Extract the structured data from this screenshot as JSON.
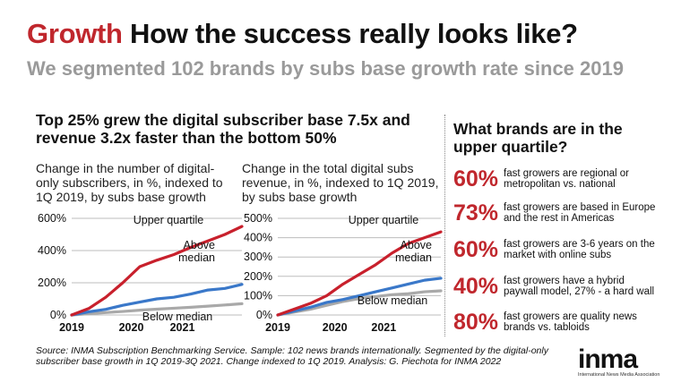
{
  "header": {
    "title_accent": "Growth",
    "title_rest": " How the success really looks like?",
    "subtitle": "We segmented 102 brands by subs base growth rate since 2019"
  },
  "headline": "Top 25% grew the digital subscriber base 7.5x and revenue 3.2x faster than the bottom 50%",
  "charts": [
    {
      "description": "Change in the number of digital-only subscribers, in %, indexed to 1Q 2019, by subs base growth"
    },
    {
      "description": "Change in the total digital subs revenue, in %, indexed to 1Q 2019, by subs base growth"
    }
  ],
  "chart_data": [
    {
      "type": "line",
      "ylim": [
        0,
        600
      ],
      "yticks": [
        "0%",
        "200%",
        "400%",
        "600%"
      ],
      "xticks": [
        "2019",
        "2020",
        "2021"
      ],
      "x": [
        0,
        1,
        2,
        3,
        4,
        5,
        6,
        7,
        8,
        9,
        10
      ],
      "series": [
        {
          "name": "Upper quartile",
          "color": "#c8202c",
          "values": [
            0,
            40,
            110,
            200,
            300,
            340,
            375,
            420,
            460,
            500,
            550
          ]
        },
        {
          "name": "Above median",
          "color": "#3a78c9",
          "values": [
            0,
            20,
            35,
            60,
            80,
            100,
            110,
            130,
            155,
            165,
            190
          ]
        },
        {
          "name": "Below median",
          "color": "#a9a9a9",
          "values": [
            0,
            8,
            15,
            22,
            30,
            36,
            42,
            48,
            55,
            62,
            70
          ]
        }
      ]
    },
    {
      "type": "line",
      "ylim": [
        0,
        500
      ],
      "yticks": [
        "0%",
        "100%",
        "200%",
        "300%",
        "400%",
        "500%"
      ],
      "xticks": [
        "2019",
        "2020",
        "2021"
      ],
      "x": [
        0,
        1,
        2,
        3,
        4,
        5,
        6,
        7,
        8,
        9,
        10
      ],
      "series": [
        {
          "name": "Upper quartile",
          "color": "#c8202c",
          "values": [
            0,
            30,
            60,
            100,
            160,
            210,
            260,
            320,
            370,
            400,
            430
          ]
        },
        {
          "name": "Above median",
          "color": "#3a78c9",
          "values": [
            0,
            20,
            40,
            65,
            80,
            100,
            120,
            140,
            160,
            180,
            190
          ]
        },
        {
          "name": "Below median",
          "color": "#a9a9a9",
          "values": [
            0,
            15,
            30,
            50,
            70,
            85,
            95,
            105,
            110,
            120,
            125
          ]
        }
      ]
    }
  ],
  "sidebar": {
    "title": "What brands are in the upper quartile?",
    "stats": [
      {
        "pct": "60%",
        "text": "fast growers are regional or metropolitan vs. national"
      },
      {
        "pct": "73%",
        "text": "fast growers are based in Europe and the rest in Americas"
      },
      {
        "pct": "60%",
        "text": "fast growers are 3-6 years on the market with online subs"
      },
      {
        "pct": "40%",
        "text": "fast growers have a hybrid paywall model, 27% - a hard wall"
      },
      {
        "pct": "80%",
        "text": "fast growers are quality news brands vs. tabloids"
      }
    ]
  },
  "footer": {
    "source": "Source: INMA Subscription Benchmarking Service. Sample: 102 news brands internationally. Segmented by the digital-only subscriber base growth in 1Q 2019-3Q 2021. Change indexed to 1Q 2019. Analysis: G. Piechota for INMA 2022",
    "logo_text": "inma",
    "logo_sub": "International News Media Association"
  }
}
